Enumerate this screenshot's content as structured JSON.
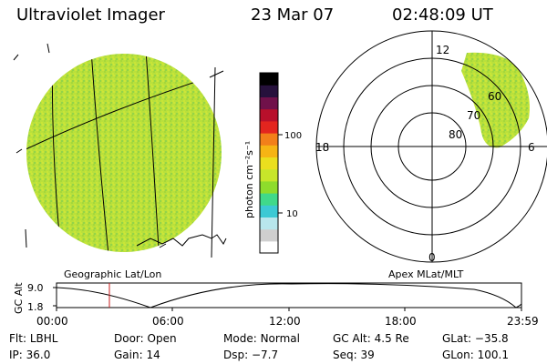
{
  "header": {
    "title": "Ultraviolet Imager",
    "date": "23 Mar 07",
    "time": "02:48:09 UT"
  },
  "geo_panel": {
    "label": "Geographic Lat/Lon"
  },
  "colorbar": {
    "unit_label": "photon cm⁻²s⁻¹",
    "ticks": [
      "100",
      "10"
    ],
    "colors": [
      "#ffffff",
      "#cfcfcf",
      "#b8e6ec",
      "#3cc9d4",
      "#40d98a",
      "#8edc2c",
      "#c7e62a",
      "#eadf1e",
      "#f6b414",
      "#f27f1a",
      "#e3251f",
      "#b8102b",
      "#70114a",
      "#26113c",
      "#000000"
    ]
  },
  "polar_panel": {
    "label": "Apex MLat/MLT",
    "mlt_labels": {
      "top": "12",
      "left": "18",
      "right": "6",
      "bottom": "0"
    },
    "lat_labels": [
      "80",
      "70",
      "60"
    ]
  },
  "timeline": {
    "axis_label": "GC Alt",
    "y_ticks": [
      "9.0",
      "1.8"
    ],
    "x_ticks": [
      "00:00",
      "06:00",
      "12:00",
      "18:00",
      "23:59"
    ],
    "marker_color": "#c81e1e"
  },
  "info": {
    "row1": [
      {
        "key": "Flt:",
        "value": "LBHL"
      },
      {
        "key": "Door:",
        "value": "Open"
      },
      {
        "key": "Mode:",
        "value": "Normal"
      },
      {
        "key": "GC Alt:",
        "value": "4.5 Re"
      },
      {
        "key": "GLat:",
        "value": "−35.8"
      }
    ],
    "row2": [
      {
        "key": "IP:",
        "value": "36.0"
      },
      {
        "key": "Gain:",
        "value": "14"
      },
      {
        "key": "Dsp:",
        "value": "−7.7"
      },
      {
        "key": "Seq:",
        "value": "39"
      },
      {
        "key": "GLon:",
        "value": "100.1"
      }
    ]
  },
  "colors": {
    "image_green": "#b4df3a",
    "background": "#ffffff"
  }
}
